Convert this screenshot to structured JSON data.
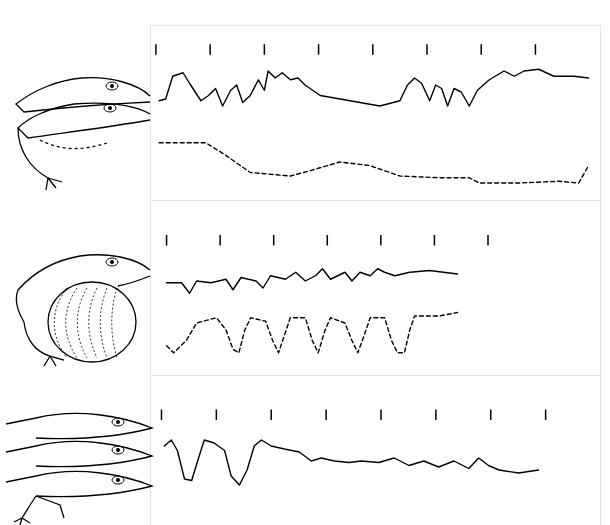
{
  "chart_data": [
    {
      "type": "line",
      "tick_labels": false,
      "xlim": [
        -0.1,
        8.2
      ],
      "ylim": [
        0,
        100
      ],
      "xticks": [
        0,
        1,
        2,
        3,
        4,
        5,
        6,
        7
      ],
      "series": [
        {
          "line_style": "solid",
          "color": "#000000",
          "x": [
            0.06,
            0.18,
            0.31,
            0.5,
            0.64,
            0.83,
            0.97,
            1.1,
            1.23,
            1.38,
            1.49,
            1.6,
            1.74,
            1.89,
            2.0,
            2.07,
            2.2,
            2.33,
            2.48,
            2.62,
            2.75,
            3.03,
            3.58,
            4.13,
            4.5,
            4.64,
            4.77,
            4.9,
            5.05,
            5.16,
            5.27,
            5.38,
            5.5,
            5.63,
            5.78,
            5.93,
            6.15,
            6.42,
            6.61,
            6.79,
            7.06,
            7.34,
            7.71,
            7.98
          ],
          "values": [
            57,
            58,
            71,
            73,
            66,
            57,
            60,
            64,
            54,
            63,
            66,
            56,
            60,
            69,
            63,
            74,
            70,
            73,
            69,
            70,
            66,
            60,
            57,
            54,
            57,
            66,
            70,
            67,
            57,
            66,
            64,
            54,
            64,
            62,
            54,
            63,
            69,
            74,
            71,
            74,
            75,
            71,
            71,
            70
          ]
        },
        {
          "line_style": "dashed",
          "color": "#000000",
          "x": [
            0.06,
            0.92,
            1.28,
            1.74,
            2.48,
            2.84,
            3.39,
            3.94,
            4.5,
            5.23,
            5.78,
            5.96,
            6.7,
            7.43,
            7.8,
            7.98
          ],
          "values": [
            33,
            33,
            26,
            16,
            14,
            17,
            22,
            20,
            14,
            13,
            13,
            10,
            10,
            11,
            10,
            20
          ]
        }
      ]
    },
    {
      "type": "line",
      "tick_labels": false,
      "xlim": [
        -0.3,
        8.1
      ],
      "ylim": [
        0,
        100
      ],
      "xticks": [
        0,
        1,
        2,
        3,
        4,
        5,
        6
      ],
      "series": [
        {
          "line_style": "solid",
          "color": "#000000",
          "x": [
            0,
            0.28,
            0.43,
            0.56,
            0.83,
            1.11,
            1.24,
            1.39,
            1.67,
            1.8,
            1.94,
            2.22,
            2.41,
            2.59,
            2.78,
            2.91,
            3.06,
            3.33,
            3.46,
            3.61,
            3.8,
            3.94,
            4.07,
            4.26,
            4.54,
            4.91,
            5.43
          ],
          "values": [
            53,
            53,
            47,
            54,
            53,
            55,
            49,
            56,
            54,
            50,
            57,
            55,
            59,
            54,
            57,
            61,
            55,
            59,
            54,
            59,
            57,
            61,
            59,
            57,
            59,
            60,
            58
          ]
        },
        {
          "line_style": "dashed",
          "color": "#000000",
          "x": [
            0,
            0.13,
            0.37,
            0.56,
            0.93,
            1.11,
            1.24,
            1.35,
            1.46,
            1.57,
            1.85,
            1.98,
            2.09,
            2.2,
            2.31,
            2.59,
            2.72,
            2.83,
            2.96,
            3.06,
            3.33,
            3.46,
            3.57,
            3.69,
            3.8,
            4.07,
            4.2,
            4.31,
            4.44,
            4.54,
            4.63,
            5.09,
            5.43
          ],
          "values": [
            17,
            13,
            20,
            30,
            33,
            26,
            15,
            13,
            26,
            33,
            31,
            20,
            13,
            23,
            33,
            33,
            20,
            13,
            26,
            33,
            30,
            20,
            13,
            23,
            33,
            33,
            20,
            13,
            13,
            26,
            34,
            34,
            36
          ]
        }
      ]
    },
    {
      "type": "line",
      "tick_labels": false,
      "xlim": [
        -0.2,
        8
      ],
      "ylim": [
        0,
        100
      ],
      "xticks": [
        0,
        1,
        2,
        3,
        4,
        5,
        6,
        7
      ],
      "series": [
        {
          "line_style": "solid",
          "color": "#000000",
          "x": [
            0.05,
            0.18,
            0.29,
            0.42,
            0.55,
            0.65,
            0.78,
            0.96,
            1.15,
            1.27,
            1.42,
            1.56,
            1.69,
            1.82,
            2.0,
            2.24,
            2.51,
            2.73,
            2.91,
            3.15,
            3.42,
            3.64,
            3.96,
            4.24,
            4.51,
            4.78,
            5.05,
            5.33,
            5.6,
            5.78,
            5.96,
            6.15,
            6.51,
            6.87
          ],
          "values": [
            53,
            57,
            50,
            31,
            30,
            42,
            57,
            55,
            50,
            33,
            27,
            37,
            53,
            57,
            53,
            51,
            49,
            43,
            45,
            43,
            42,
            43,
            42,
            45,
            40,
            43,
            39,
            43,
            38,
            45,
            40,
            37,
            35,
            37
          ]
        }
      ]
    }
  ]
}
